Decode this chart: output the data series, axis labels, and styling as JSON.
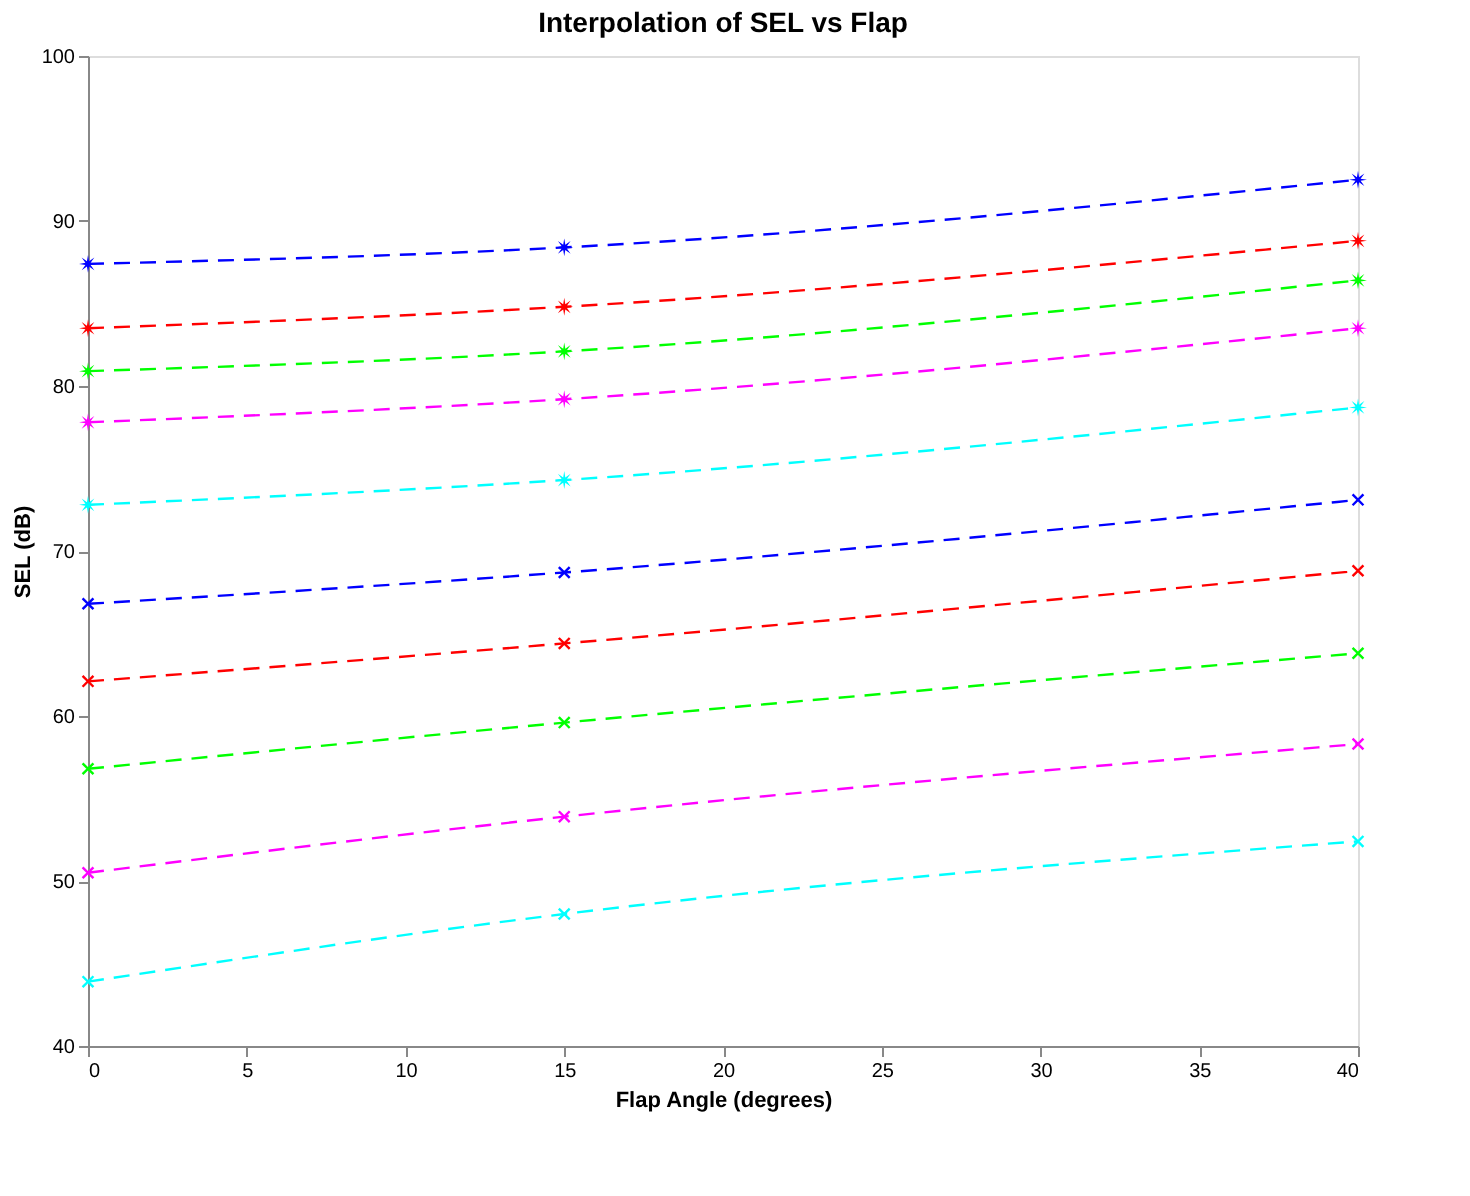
{
  "chart_data": {
    "type": "line",
    "title": "Interpolation of SEL vs Flap",
    "xlabel": "Flap Angle (degrees)",
    "ylabel": "SEL (dB)",
    "x": [
      0,
      15,
      40
    ],
    "series": [
      {
        "color": "#0000ff",
        "marker": "star",
        "values": [
          87.4,
          88.4,
          92.5
        ]
      },
      {
        "color": "#ff0000",
        "marker": "star",
        "values": [
          83.5,
          84.8,
          88.8
        ]
      },
      {
        "color": "#00ff00",
        "marker": "star",
        "values": [
          80.9,
          82.1,
          86.4
        ]
      },
      {
        "color": "#ff00ff",
        "marker": "star",
        "values": [
          77.8,
          79.2,
          83.5
        ]
      },
      {
        "color": "#00ffff",
        "marker": "star",
        "values": [
          72.8,
          74.3,
          78.7
        ]
      },
      {
        "color": "#0000ff",
        "marker": "cross",
        "values": [
          66.8,
          68.7,
          73.1
        ]
      },
      {
        "color": "#ff0000",
        "marker": "cross",
        "values": [
          62.1,
          64.4,
          68.8
        ]
      },
      {
        "color": "#00ff00",
        "marker": "cross",
        "values": [
          56.8,
          59.6,
          63.8
        ]
      },
      {
        "color": "#ff00ff",
        "marker": "cross",
        "values": [
          50.5,
          53.9,
          58.3
        ]
      },
      {
        "color": "#00ffff",
        "marker": "cross",
        "values": [
          43.9,
          48.0,
          52.4
        ]
      }
    ],
    "xlim": [
      0,
      40
    ],
    "xticks": [
      0,
      5,
      10,
      15,
      20,
      25,
      30,
      35,
      40
    ],
    "ylim": [
      40,
      100
    ],
    "yticks": [
      40,
      50,
      60,
      70,
      80,
      90,
      100
    ],
    "grid": false,
    "line_style": "dashed"
  }
}
